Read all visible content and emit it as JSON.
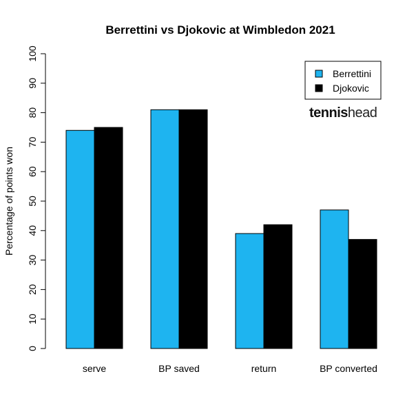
{
  "chart_data": {
    "type": "bar",
    "title": "Berrettini vs Djokovic at Wimbledon 2021",
    "xlabel": "",
    "ylabel": "Percentage of points won",
    "ylim": [
      0,
      100
    ],
    "y_ticks": [
      0,
      10,
      20,
      30,
      40,
      50,
      60,
      70,
      80,
      90,
      100
    ],
    "categories": [
      "serve",
      "BP saved",
      "return",
      "BP converted"
    ],
    "series": [
      {
        "name": "Berrettini",
        "color": "#1EB4F0",
        "values": [
          74,
          81,
          39,
          47
        ]
      },
      {
        "name": "Djokovic",
        "color": "#000000",
        "values": [
          75,
          81,
          42,
          37
        ]
      }
    ],
    "legend_position": "top-right",
    "grid": false
  },
  "logo": {
    "part1": "tennis",
    "part2": "head"
  }
}
